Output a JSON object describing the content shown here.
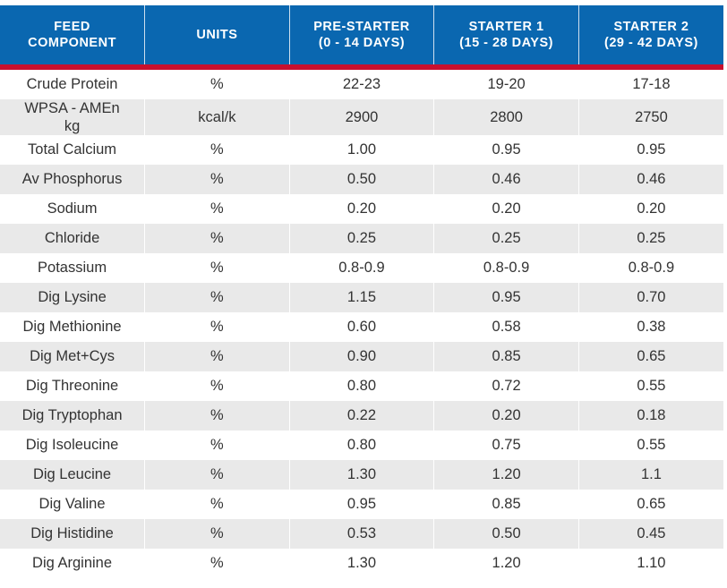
{
  "table": {
    "headers": [
      "FEED\nCOMPONENT",
      "UNITS",
      "PRE-STARTER\n(0 - 14 DAYS)",
      "STARTER 1\n(15 - 28 DAYS)",
      "STARTER 2\n(29 - 42 DAYS)"
    ],
    "rows": [
      [
        "Crude Protein",
        "%",
        "22-23",
        "19-20",
        "17-18"
      ],
      [
        "WPSA - AMEn kg",
        "kcal/k",
        "2900",
        "2800",
        "2750"
      ],
      [
        "Total Calcium",
        "%",
        "1.00",
        "0.95",
        "0.95"
      ],
      [
        "Av Phosphorus",
        "%",
        "0.50",
        "0.46",
        "0.46"
      ],
      [
        "Sodium",
        "%",
        "0.20",
        "0.20",
        "0.20"
      ],
      [
        "Chloride",
        "%",
        "0.25",
        "0.25",
        "0.25"
      ],
      [
        "Potassium",
        "%",
        "0.8-0.9",
        "0.8-0.9",
        "0.8-0.9"
      ],
      [
        "Dig Lysine",
        "%",
        "1.15",
        "0.95",
        "0.70"
      ],
      [
        "Dig Methionine",
        "%",
        "0.60",
        "0.58",
        "0.38"
      ],
      [
        "Dig Met+Cys",
        "%",
        "0.90",
        "0.85",
        "0.65"
      ],
      [
        "Dig Threonine",
        "%",
        "0.80",
        "0.72",
        "0.55"
      ],
      [
        "Dig Tryptophan",
        "%",
        "0.22",
        "0.20",
        "0.18"
      ],
      [
        "Dig Isoleucine",
        "%",
        "0.80",
        "0.75",
        "0.55"
      ],
      [
        "Dig Leucine",
        "%",
        "1.30",
        "1.20",
        "1.1"
      ],
      [
        "Dig Valine",
        "%",
        "0.95",
        "0.85",
        "0.65"
      ],
      [
        "Dig Histidine",
        "%",
        "0.53",
        "0.50",
        "0.45"
      ],
      [
        "Dig Arginine",
        "%",
        "1.30",
        "1.20",
        "1.10"
      ]
    ]
  },
  "colors": {
    "header_bg": "#0a67b0",
    "header_rule": "#c8102e",
    "stripe": "#e9e9e9",
    "text": "#333333"
  }
}
